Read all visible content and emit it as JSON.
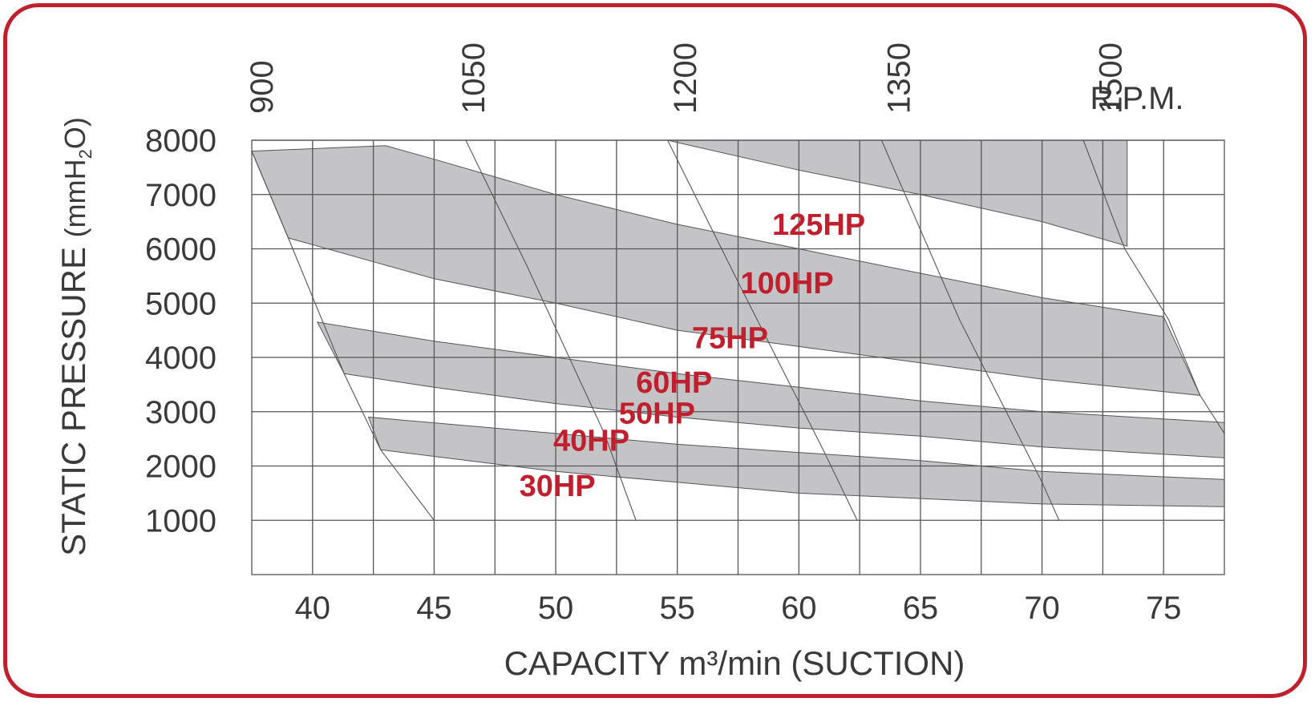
{
  "chart_data": {
    "type": "line",
    "xlabel": "CAPACITY m³/min (SUCTION)",
    "ylabel_main": "STATIC PRESSURE",
    "ylabel_unit": "(mmH",
    "ylabel_sub": "2",
    "ylabel_end": "O)",
    "x_ticks": [
      "40",
      "45",
      "50",
      "55",
      "60",
      "65",
      "70",
      "75"
    ],
    "y_ticks": [
      "1000",
      "2000",
      "3000",
      "4000",
      "5000",
      "6000",
      "7000",
      "8000"
    ],
    "xlim": [
      37.5,
      77.5
    ],
    "ylim": [
      0,
      8000
    ],
    "grid": true,
    "rpm_label": "R.P.M.",
    "rpm_lines": [
      {
        "name": "900",
        "label_x": 37.9,
        "points": [
          [
            37.5,
            7800
          ],
          [
            39.0,
            6200
          ],
          [
            41.3,
            3700
          ],
          [
            42.8,
            2300
          ],
          [
            45.0,
            1000
          ]
        ]
      },
      {
        "name": "1050",
        "label_x": 46.6,
        "points": [
          [
            46.3,
            8000
          ],
          [
            48.8,
            5700
          ],
          [
            52.0,
            2600
          ],
          [
            53.3,
            1000
          ]
        ]
      },
      {
        "name": "1200",
        "label_x": 55.3,
        "points": [
          [
            54.6,
            8000
          ],
          [
            57.6,
            5300
          ],
          [
            61.0,
            2300
          ],
          [
            62.4,
            1000
          ]
        ]
      },
      {
        "name": "1350",
        "label_x": 64.1,
        "points": [
          [
            63.4,
            8000
          ],
          [
            66.6,
            4700
          ],
          [
            70.0,
            1700
          ],
          [
            70.7,
            1000
          ]
        ]
      },
      {
        "name": "1500",
        "label_x": 72.8,
        "points": [
          [
            71.7,
            8000
          ],
          [
            73.4,
            6000
          ],
          [
            75.2,
            4700
          ],
          [
            76.5,
            3300
          ],
          [
            77.5,
            2600
          ]
        ]
      }
    ],
    "series": [
      {
        "name": "30HP",
        "label_at": [
          48.5,
          1450
        ],
        "lower_edge": [
          [
            42.8,
            2300
          ],
          [
            50,
            1900
          ],
          [
            55,
            1700
          ],
          [
            60,
            1500
          ],
          [
            65,
            1400
          ],
          [
            70,
            1300
          ],
          [
            77.5,
            1250
          ]
        ]
      },
      {
        "name": "40HP",
        "label_at": [
          49.9,
          2280
        ],
        "lower_edge": [
          [
            42.3,
            2900
          ],
          [
            50,
            2600
          ],
          [
            55,
            2400
          ],
          [
            60,
            2250
          ],
          [
            65,
            2100
          ],
          [
            70,
            1900
          ],
          [
            77.5,
            1750
          ]
        ]
      },
      {
        "name": "50HP",
        "label_at": [
          52.6,
          2780
        ],
        "lower_edge": [
          [
            41.3,
            3700
          ],
          [
            45,
            3450
          ],
          [
            50,
            3150
          ],
          [
            55,
            2900
          ],
          [
            60,
            2700
          ],
          [
            65,
            2550
          ],
          [
            70,
            2350
          ],
          [
            77.5,
            2150
          ]
        ]
      },
      {
        "name": "60HP",
        "label_at": [
          53.3,
          3350
        ],
        "lower_edge": [
          [
            40.2,
            4650
          ],
          [
            45,
            4300
          ],
          [
            50,
            4000
          ],
          [
            55,
            3700
          ],
          [
            60,
            3450
          ],
          [
            65,
            3200
          ],
          [
            70,
            3000
          ],
          [
            77.5,
            2800
          ]
        ]
      },
      {
        "name": "75HP",
        "label_at": [
          55.6,
          4170
        ],
        "lower_edge": [
          [
            39.0,
            6200
          ],
          [
            45,
            5450
          ],
          [
            50,
            5000
          ],
          [
            55,
            4500
          ],
          [
            60,
            4200
          ],
          [
            65,
            3900
          ],
          [
            70,
            3600
          ],
          [
            76.5,
            3300
          ]
        ]
      },
      {
        "name": "100HP",
        "label_at": [
          57.6,
          5180
        ],
        "lower_edge": [
          [
            37.5,
            7800
          ],
          [
            43,
            7900
          ],
          [
            45,
            7650
          ],
          [
            50,
            7000
          ],
          [
            55,
            6450
          ],
          [
            60,
            6000
          ],
          [
            65,
            5550
          ],
          [
            70,
            5100
          ],
          [
            75,
            4750
          ]
        ]
      },
      {
        "name": "125HP",
        "label_at": [
          58.9,
          6260
        ],
        "lower_edge": [
          [
            54.6,
            8000
          ],
          [
            60,
            7450
          ],
          [
            65,
            7000
          ],
          [
            70,
            6500
          ],
          [
            73.5,
            6050
          ]
        ]
      }
    ],
    "bands": [
      {
        "between": [
          "30HP",
          "40HP"
        ]
      },
      {
        "between": [
          "50HP",
          "60HP"
        ]
      },
      {
        "between": [
          "75HP",
          "100HP"
        ]
      },
      {
        "between": [
          "125HP",
          "top"
        ]
      }
    ]
  },
  "colors": {
    "frame": "#c0202e",
    "band_fill": "#c4c4c6",
    "line": "#555555",
    "hp_label": "#c0202e",
    "text": "#3a3a3a"
  }
}
